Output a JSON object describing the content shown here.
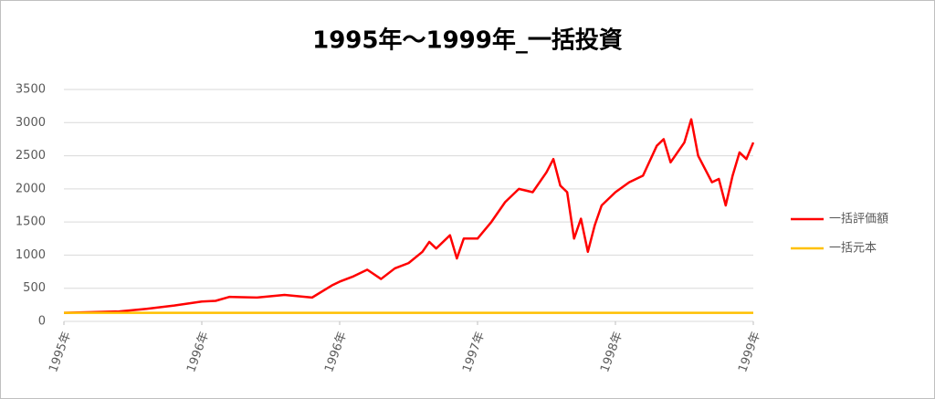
{
  "chart_data": {
    "type": "line",
    "title": "1995年～1999年_一括投資",
    "xlim": [
      0,
      5
    ],
    "xticks": [
      {
        "value": 0,
        "label": "1995年"
      },
      {
        "value": 1,
        "label": "1996年"
      },
      {
        "value": 2,
        "label": "1996年"
      },
      {
        "value": 3,
        "label": "1997年"
      },
      {
        "value": 4,
        "label": "1998年"
      },
      {
        "value": 5,
        "label": "1999年"
      }
    ],
    "ylim": [
      0,
      3500
    ],
    "yticks": [
      0,
      500,
      1000,
      1500,
      2000,
      2500,
      3000,
      3500
    ],
    "grid": true,
    "legend": "right",
    "series": [
      {
        "name": "一括評価額",
        "color": "#ff0000",
        "x": [
          0,
          0.2,
          0.4,
          0.6,
          0.8,
          1.0,
          1.1,
          1.2,
          1.4,
          1.6,
          1.8,
          1.95,
          2.0,
          2.1,
          2.2,
          2.3,
          2.4,
          2.5,
          2.6,
          2.65,
          2.7,
          2.8,
          2.85,
          2.9,
          3.0,
          3.1,
          3.2,
          3.3,
          3.4,
          3.5,
          3.55,
          3.6,
          3.65,
          3.7,
          3.75,
          3.8,
          3.85,
          3.9,
          4.0,
          4.1,
          4.2,
          4.3,
          4.35,
          4.4,
          4.5,
          4.55,
          4.6,
          4.7,
          4.75,
          4.8,
          4.85,
          4.9,
          4.95,
          5.0
        ],
        "values": [
          130,
          140,
          150,
          190,
          240,
          300,
          310,
          370,
          360,
          400,
          360,
          550,
          600,
          680,
          780,
          640,
          800,
          880,
          1050,
          1200,
          1100,
          1300,
          950,
          1250,
          1250,
          1500,
          1800,
          2000,
          1950,
          2250,
          2450,
          2050,
          1950,
          1250,
          1550,
          1050,
          1450,
          1750,
          1950,
          2100,
          2200,
          2650,
          2750,
          2400,
          2700,
          3050,
          2500,
          2100,
          2150,
          1750,
          2200,
          2550,
          2450,
          2700
        ]
      },
      {
        "name": "一括元本",
        "color": "#ffc000",
        "x": [
          0,
          5
        ],
        "values": [
          130,
          130
        ]
      }
    ]
  }
}
